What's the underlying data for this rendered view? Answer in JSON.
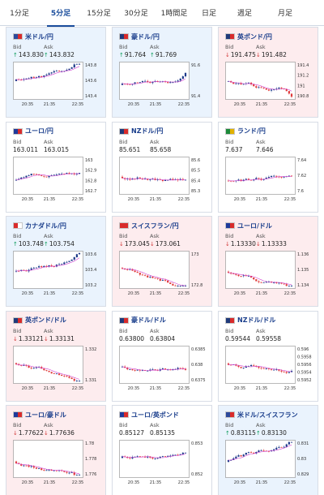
{
  "tabs": [
    "1分足",
    "5分足",
    "15分足",
    "30分足",
    "1時間足",
    "日足",
    "週足",
    "月足"
  ],
  "active_tab": 1,
  "colors": {
    "accent": "#1a4d9c",
    "up": "#0a9b5a",
    "down": "#d23a3a",
    "bull_candle": "#1e3a8a",
    "bear_candle": "#e03b3b",
    "ma": "#d142d1"
  },
  "cards": [
    {
      "name": "米ドル/円",
      "state": "up",
      "flag": [
        "#2c4a9b",
        "#d92b2b"
      ],
      "bid_label": "Bid",
      "ask_label": "Ask",
      "bid": "143.830",
      "ask": "143.832",
      "dir": "up",
      "arrow_icon": "arrow-up-icon",
      "y_ticks": [
        "143.8",
        "143.6",
        "143.4"
      ],
      "x_ticks": [
        "20:35",
        "21:35",
        "22:35"
      ]
    },
    {
      "name": "豪ドル/円",
      "state": "up",
      "flag": [
        "#1f3a7a",
        "#d92b2b"
      ],
      "bid_label": "Bid",
      "ask_label": "Ask",
      "bid": "91.764",
      "ask": "91.769",
      "dir": "up",
      "arrow_icon": "arrow-up-icon",
      "y_ticks": [
        "91.6",
        "91.4"
      ],
      "x_ticks": [
        "20:35",
        "21:35",
        "22:35"
      ]
    },
    {
      "name": "英ポンド/円",
      "state": "down",
      "flag": [
        "#1f3a7a",
        "#d92b2b"
      ],
      "bid_label": "Bid",
      "ask_label": "Ask",
      "bid": "191.475",
      "ask": "191.482",
      "dir": "down",
      "arrow_icon": "arrow-down-icon",
      "y_ticks": [
        "191.4",
        "191.2",
        "191",
        "190.8"
      ],
      "x_ticks": [
        "20:35",
        "21:35",
        "22:35"
      ]
    },
    {
      "name": "ユーロ/円",
      "state": "neutral",
      "flag": [
        "#1f3a9a",
        "#d92b2b"
      ],
      "bid_label": "Bid",
      "ask_label": "Ask",
      "bid": "163.011",
      "ask": "163.015",
      "dir": "",
      "arrow_icon": "",
      "y_ticks": [
        "163",
        "162.9",
        "162.8",
        "162.7"
      ],
      "x_ticks": [
        "20:35",
        "21:35",
        "22:35"
      ]
    },
    {
      "name": "NZドル/円",
      "state": "neutral",
      "flag": [
        "#1f3a7a",
        "#d92b2b"
      ],
      "bid_label": "Bid",
      "ask_label": "Ask",
      "bid": "85.651",
      "ask": "85.658",
      "dir": "",
      "arrow_icon": "",
      "y_ticks": [
        "85.6",
        "85.5",
        "85.4",
        "85.3"
      ],
      "x_ticks": [
        "20:35",
        "21:35",
        "22:35"
      ]
    },
    {
      "name": "ランド/円",
      "state": "neutral",
      "flag": [
        "#1c8a3a",
        "#e2b200"
      ],
      "bid_label": "Bid",
      "ask_label": "Ask",
      "bid": "7.637",
      "ask": "7.646",
      "dir": "",
      "arrow_icon": "",
      "y_ticks": [
        "7.64",
        "7.62",
        "7.6"
      ],
      "x_ticks": [
        "20:35",
        "21:35",
        "22:35"
      ]
    },
    {
      "name": "カナダドル/円",
      "state": "up",
      "flag": [
        "#d92b2b",
        "#ffffff"
      ],
      "bid_label": "Bid",
      "ask_label": "Ask",
      "bid": "103.748",
      "ask": "103.754",
      "dir": "up",
      "arrow_icon": "arrow-up-icon",
      "y_ticks": [
        "103.6",
        "103.4",
        "103.2"
      ],
      "x_ticks": [
        "20:35",
        "21:35",
        "22:35"
      ]
    },
    {
      "name": "スイスフラン/円",
      "state": "down",
      "flag": [
        "#d92b2b",
        "#d92b2b"
      ],
      "bid_label": "Bid",
      "ask_label": "Ask",
      "bid": "173.045",
      "ask": "173.061",
      "dir": "down",
      "arrow_icon": "arrow-down-icon",
      "y_ticks": [
        "173",
        "172.8"
      ],
      "x_ticks": [
        "20:35",
        "21:35",
        "22:35"
      ]
    },
    {
      "name": "ユーロ/ドル",
      "state": "down",
      "flag": [
        "#1f3a9a",
        "#d92b2b"
      ],
      "bid_label": "Bid",
      "ask_label": "Ask",
      "bid": "1.13330",
      "ask": "1.13333",
      "dir": "down",
      "arrow_icon": "arrow-down-icon",
      "y_ticks": [
        "1.136",
        "1.135",
        "1.134"
      ],
      "x_ticks": [
        "20:35",
        "21:35",
        "22:35"
      ]
    },
    {
      "name": "英ポンド/ドル",
      "state": "down",
      "flag": [
        "#1f3a7a",
        "#d92b2b"
      ],
      "bid_label": "Bid",
      "ask_label": "Ask",
      "bid": "1.33121",
      "ask": "1.33131",
      "dir": "down",
      "arrow_icon": "arrow-down-icon",
      "y_ticks": [
        "1.332",
        "1.331"
      ],
      "x_ticks": [
        "20:35",
        "21:35",
        "22:35"
      ]
    },
    {
      "name": "豪ドル/ドル",
      "state": "neutral",
      "flag": [
        "#1f3a7a",
        "#d92b2b"
      ],
      "bid_label": "Bid",
      "ask_label": "Ask",
      "bid": "0.63800",
      "ask": "0.63804",
      "dir": "",
      "arrow_icon": "",
      "y_ticks": [
        "0.6385",
        "0.638",
        "0.6375"
      ],
      "x_ticks": [
        "20:35",
        "21:35",
        "22:35"
      ]
    },
    {
      "name": "NZドル/ドル",
      "state": "neutral",
      "flag": [
        "#1f3a7a",
        "#d92b2b"
      ],
      "bid_label": "Bid",
      "ask_label": "Ask",
      "bid": "0.59544",
      "ask": "0.59558",
      "dir": "",
      "arrow_icon": "",
      "y_ticks": [
        "0.596",
        "0.5958",
        "0.5956",
        "0.5954",
        "0.5952"
      ],
      "x_ticks": [
        "20:35",
        "21:35",
        "22:35"
      ]
    },
    {
      "name": "ユーロ/豪ドル",
      "state": "down",
      "flag": [
        "#1f3a9a",
        "#d92b2b"
      ],
      "bid_label": "Bid",
      "ask_label": "Ask",
      "bid": "1.77622",
      "ask": "1.77636",
      "dir": "down",
      "arrow_icon": "arrow-down-icon",
      "y_ticks": [
        "1.78",
        "1.778",
        "1.776"
      ],
      "x_ticks": [
        "20:35",
        "21:35",
        "22:35"
      ]
    },
    {
      "name": "ユーロ/英ポンド",
      "state": "neutral",
      "flag": [
        "#1f3a9a",
        "#d92b2b"
      ],
      "bid_label": "Bid",
      "ask_label": "Ask",
      "bid": "0.85127",
      "ask": "0.85135",
      "dir": "",
      "arrow_icon": "",
      "y_ticks": [
        "0.853",
        "0.852"
      ],
      "x_ticks": [
        "20:35",
        "21:35",
        "22:35"
      ]
    },
    {
      "name": "米ドル/スイスフラン",
      "state": "up",
      "flag": [
        "#2c4a9b",
        "#d92b2b"
      ],
      "bid_label": "Bid",
      "ask_label": "Ask",
      "bid": "0.83115",
      "ask": "0.83130",
      "dir": "up",
      "arrow_icon": "arrow-up-icon",
      "y_ticks": [
        "0.831",
        "0.83",
        "0.829"
      ],
      "x_ticks": [
        "20:35",
        "21:35",
        "22:35"
      ]
    }
  ]
}
